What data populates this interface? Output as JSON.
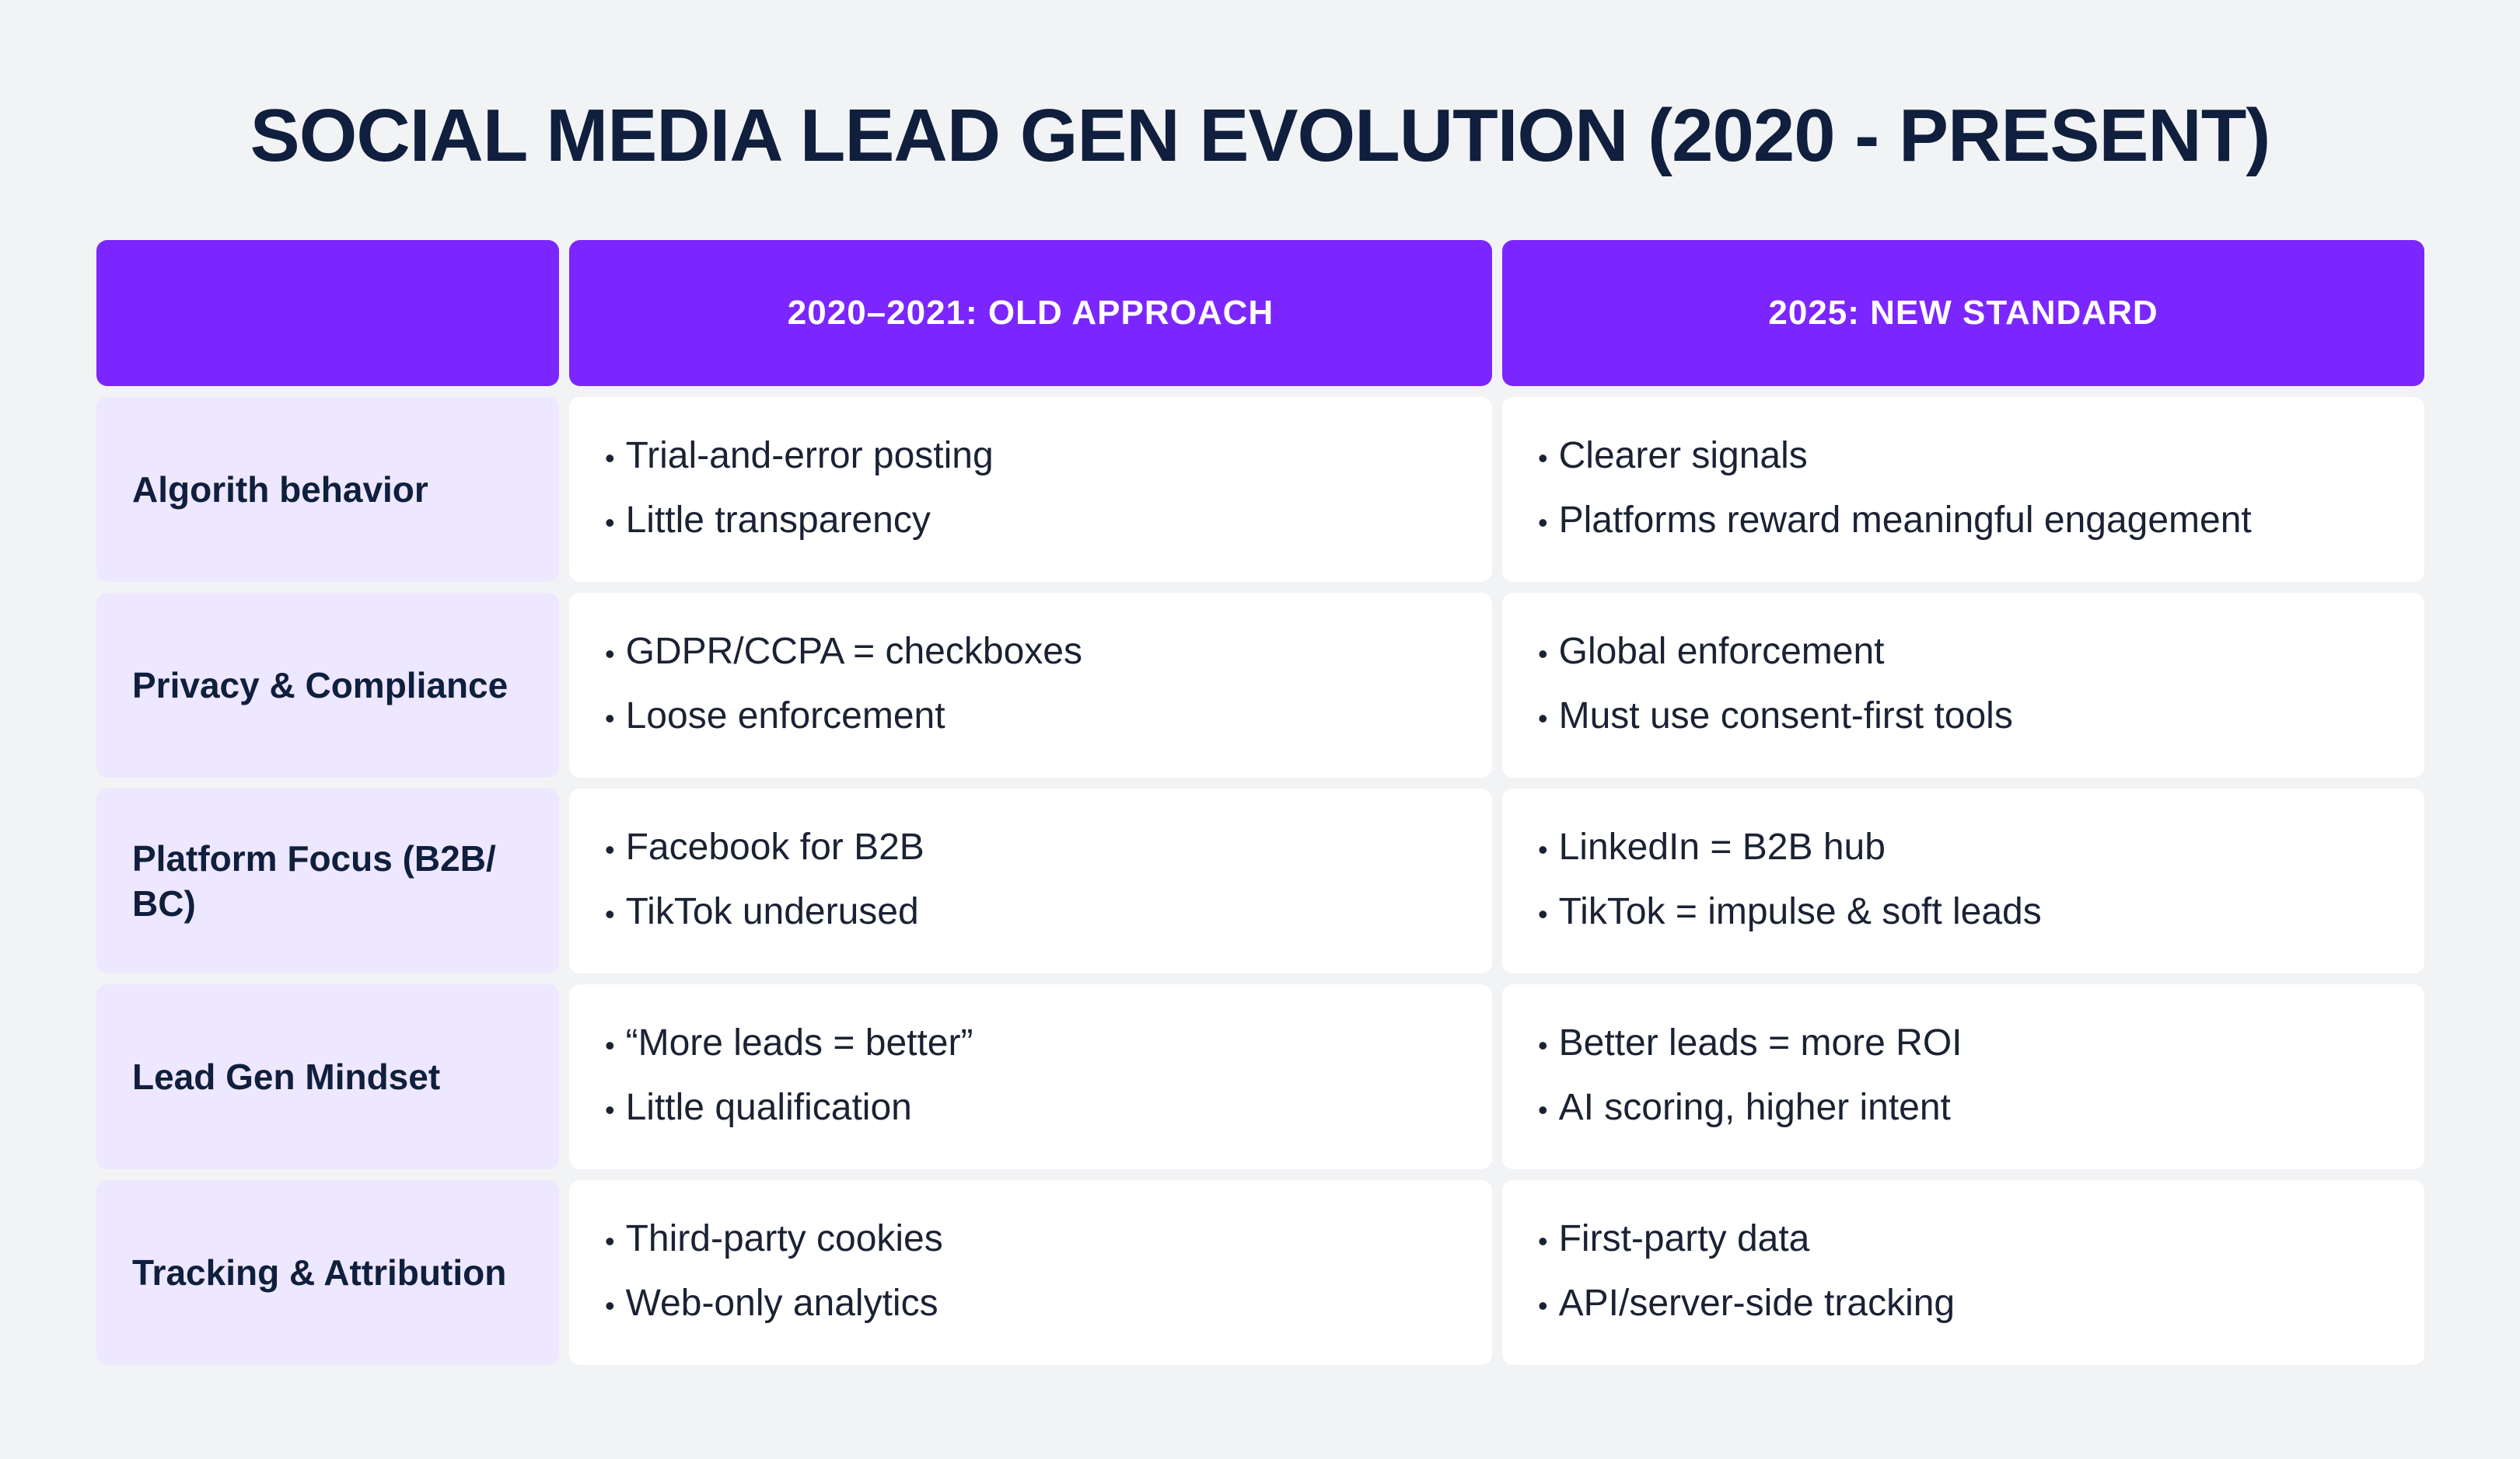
{
  "title": "SOCIAL MEDIA LEAD GEN EVOLUTION (2020 - PRESENT)",
  "columns": [
    "",
    "2020–2021: OLD APPROACH",
    "2025: NEW STANDARD"
  ],
  "rows": [
    {
      "label": "Algorith behavior",
      "old": [
        "Trial-and-error posting",
        "Little transparency"
      ],
      "new": [
        "Clearer signals",
        "Platforms reward meaningful engagement"
      ]
    },
    {
      "label": "Privacy & Compliance",
      "old": [
        "GDPR/CCPA = checkboxes",
        "Loose enforcement"
      ],
      "new": [
        "Global enforcement",
        "Must use consent-first tools"
      ]
    },
    {
      "label": "Platform Focus (B2B/ BC)",
      "old": [
        "Facebook for B2B",
        "TikTok underused"
      ],
      "new": [
        "LinkedIn = B2B hub",
        "TikTok = impulse & soft leads"
      ]
    },
    {
      "label": "Lead Gen Mindset",
      "old": [
        "“More leads = better”",
        "Little qualification"
      ],
      "new": [
        "Better leads = more ROI",
        "AI scoring, higher intent"
      ]
    },
    {
      "label": "Tracking & Attribution",
      "old": [
        "Third-party cookies",
        "Web-only analytics"
      ],
      "new": [
        "First-party data",
        "API/server-side tracking"
      ]
    }
  ],
  "bullet_glyph": "•",
  "colors": {
    "background": "#f2f3f5",
    "header": "#7b26ff",
    "label_cell": "#ede7ff",
    "body_cell": "#ffffff",
    "title_text": "#0f1f3d"
  }
}
